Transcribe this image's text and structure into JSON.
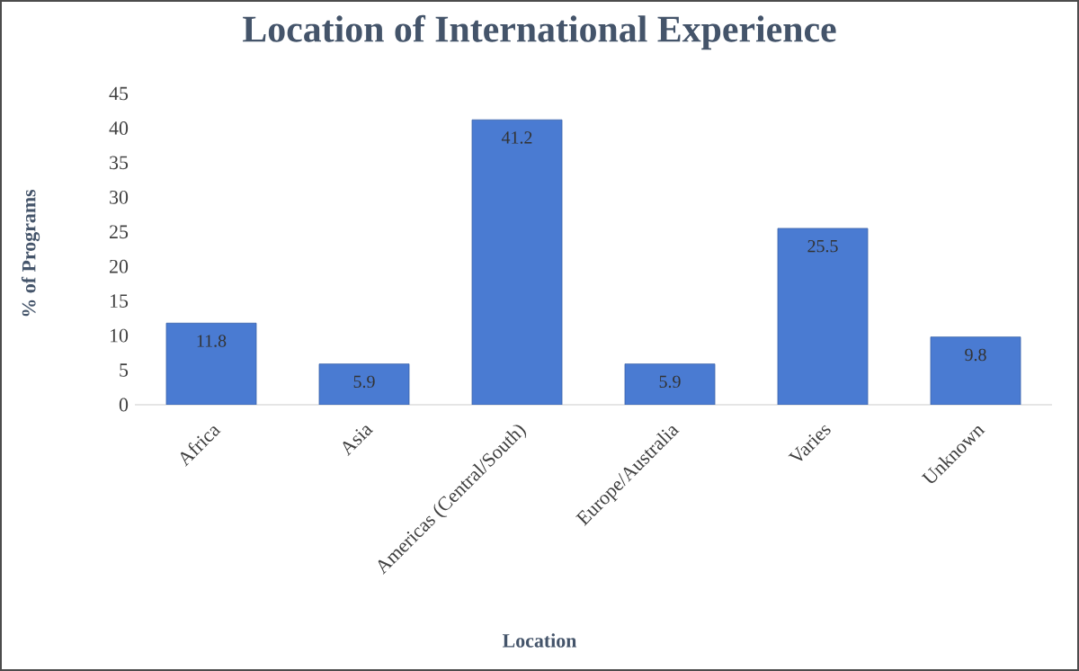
{
  "chart_data": {
    "type": "bar",
    "title": "Location of International Experience",
    "xlabel": "Location",
    "ylabel": "% of Programs",
    "categories": [
      "Africa",
      "Asia",
      "Americas (Central/South)",
      "Europe/Australia",
      "Varies",
      "Unknown"
    ],
    "values": [
      11.8,
      5.9,
      41.2,
      5.9,
      25.5,
      9.8
    ],
    "color": "#4a7bd2",
    "ylim": [
      0,
      45
    ],
    "yticks": [
      0,
      5,
      10,
      15,
      20,
      25,
      30,
      35,
      40,
      45
    ],
    "data_labels": true
  }
}
